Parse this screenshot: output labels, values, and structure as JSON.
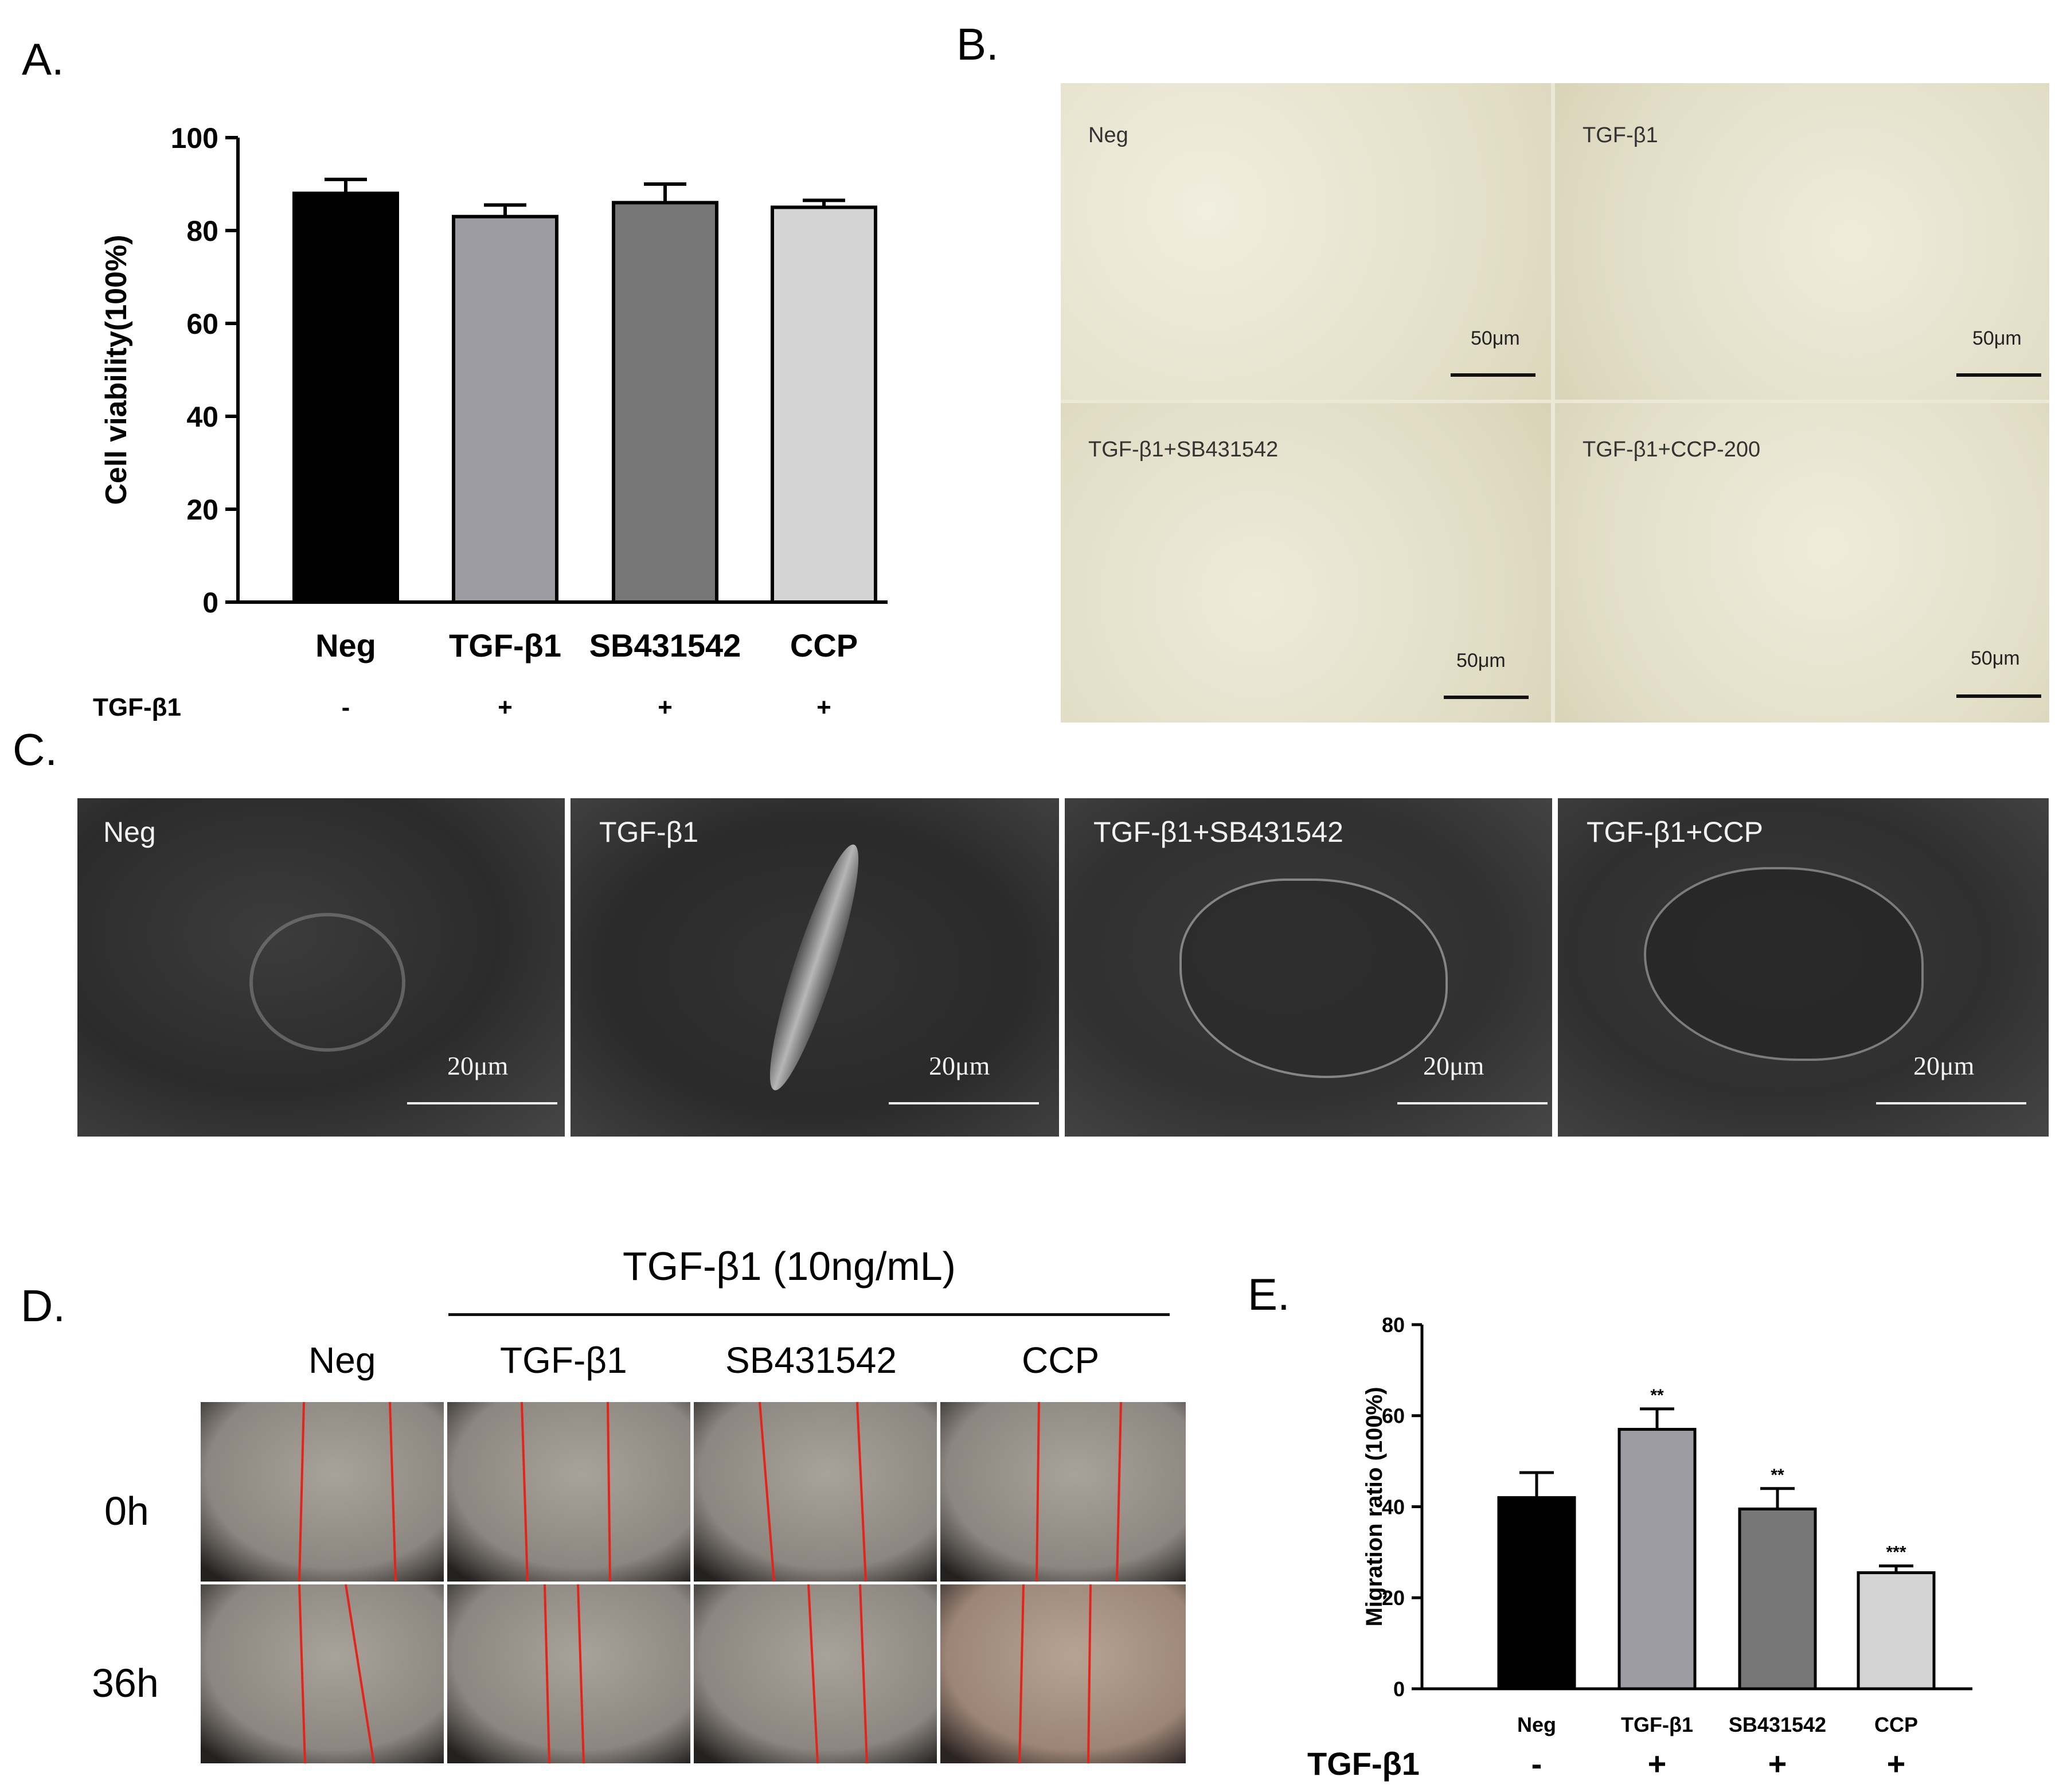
{
  "panels": {
    "a": "A.",
    "b": "B.",
    "c": "C.",
    "d": "D.",
    "e": "E."
  },
  "chart_data": [
    {
      "type": "bar",
      "title": "",
      "xlabel": "",
      "ylabel": "Cell viability(100%)",
      "ylim": [
        0,
        100
      ],
      "yticks": [
        0,
        20,
        40,
        60,
        80,
        100
      ],
      "categories": [
        "Neg",
        "TGF-β1",
        "SB431542",
        "CCP"
      ],
      "values": [
        88,
        83,
        86,
        85
      ],
      "errors": [
        3,
        2.5,
        4,
        1.5
      ],
      "bar_colors": [
        "#000000",
        "#9c9ca2",
        "#777777",
        "#d4d4d4"
      ],
      "treatment_row": {
        "label": "TGF-β1",
        "signs": [
          "-",
          "+",
          "+",
          "+"
        ]
      },
      "grid": false,
      "legend": "none"
    },
    {
      "type": "bar",
      "title": "",
      "xlabel": "",
      "ylabel": "Migration ratio (100%)",
      "ylim": [
        0,
        80
      ],
      "yticks": [
        0,
        20,
        40,
        60,
        80
      ],
      "categories": [
        "Neg",
        "TGF-β1",
        "SB431542",
        "CCP"
      ],
      "values": [
        42,
        57,
        39.5,
        25.5
      ],
      "errors": [
        5.5,
        4.5,
        4.5,
        1.5
      ],
      "significance": [
        "",
        "**",
        "**",
        "***"
      ],
      "bar_colors": [
        "#000000",
        "#9c9ca2",
        "#777777",
        "#d4d4d4"
      ],
      "treatment_row": {
        "label": "TGF-β1",
        "signs": [
          "-",
          "+",
          "+",
          "+"
        ]
      },
      "grid": false,
      "legend": "none"
    }
  ],
  "panel_b": {
    "images": [
      {
        "label": "Neg",
        "scale": "50μm"
      },
      {
        "label": "TGF-β1",
        "scale": "50μm"
      },
      {
        "label": "TGF-β1+SB431542",
        "scale": "50μm"
      },
      {
        "label": "TGF-β1+CCP-200",
        "scale": "50μm"
      }
    ]
  },
  "panel_c": {
    "images": [
      {
        "label": "Neg",
        "scale": "20μm"
      },
      {
        "label": "TGF-β1",
        "scale": "20μm"
      },
      {
        "label": "TGF-β1+SB431542",
        "scale": "20μm"
      },
      {
        "label": "TGF-β1+CCP",
        "scale": "20μm"
      }
    ]
  },
  "panel_d": {
    "header": "TGF-β1 (10ng/mL)",
    "columns": [
      "Neg",
      "TGF-β1",
      "SB431542",
      "CCP"
    ],
    "rows": [
      "0h",
      "36h"
    ]
  }
}
